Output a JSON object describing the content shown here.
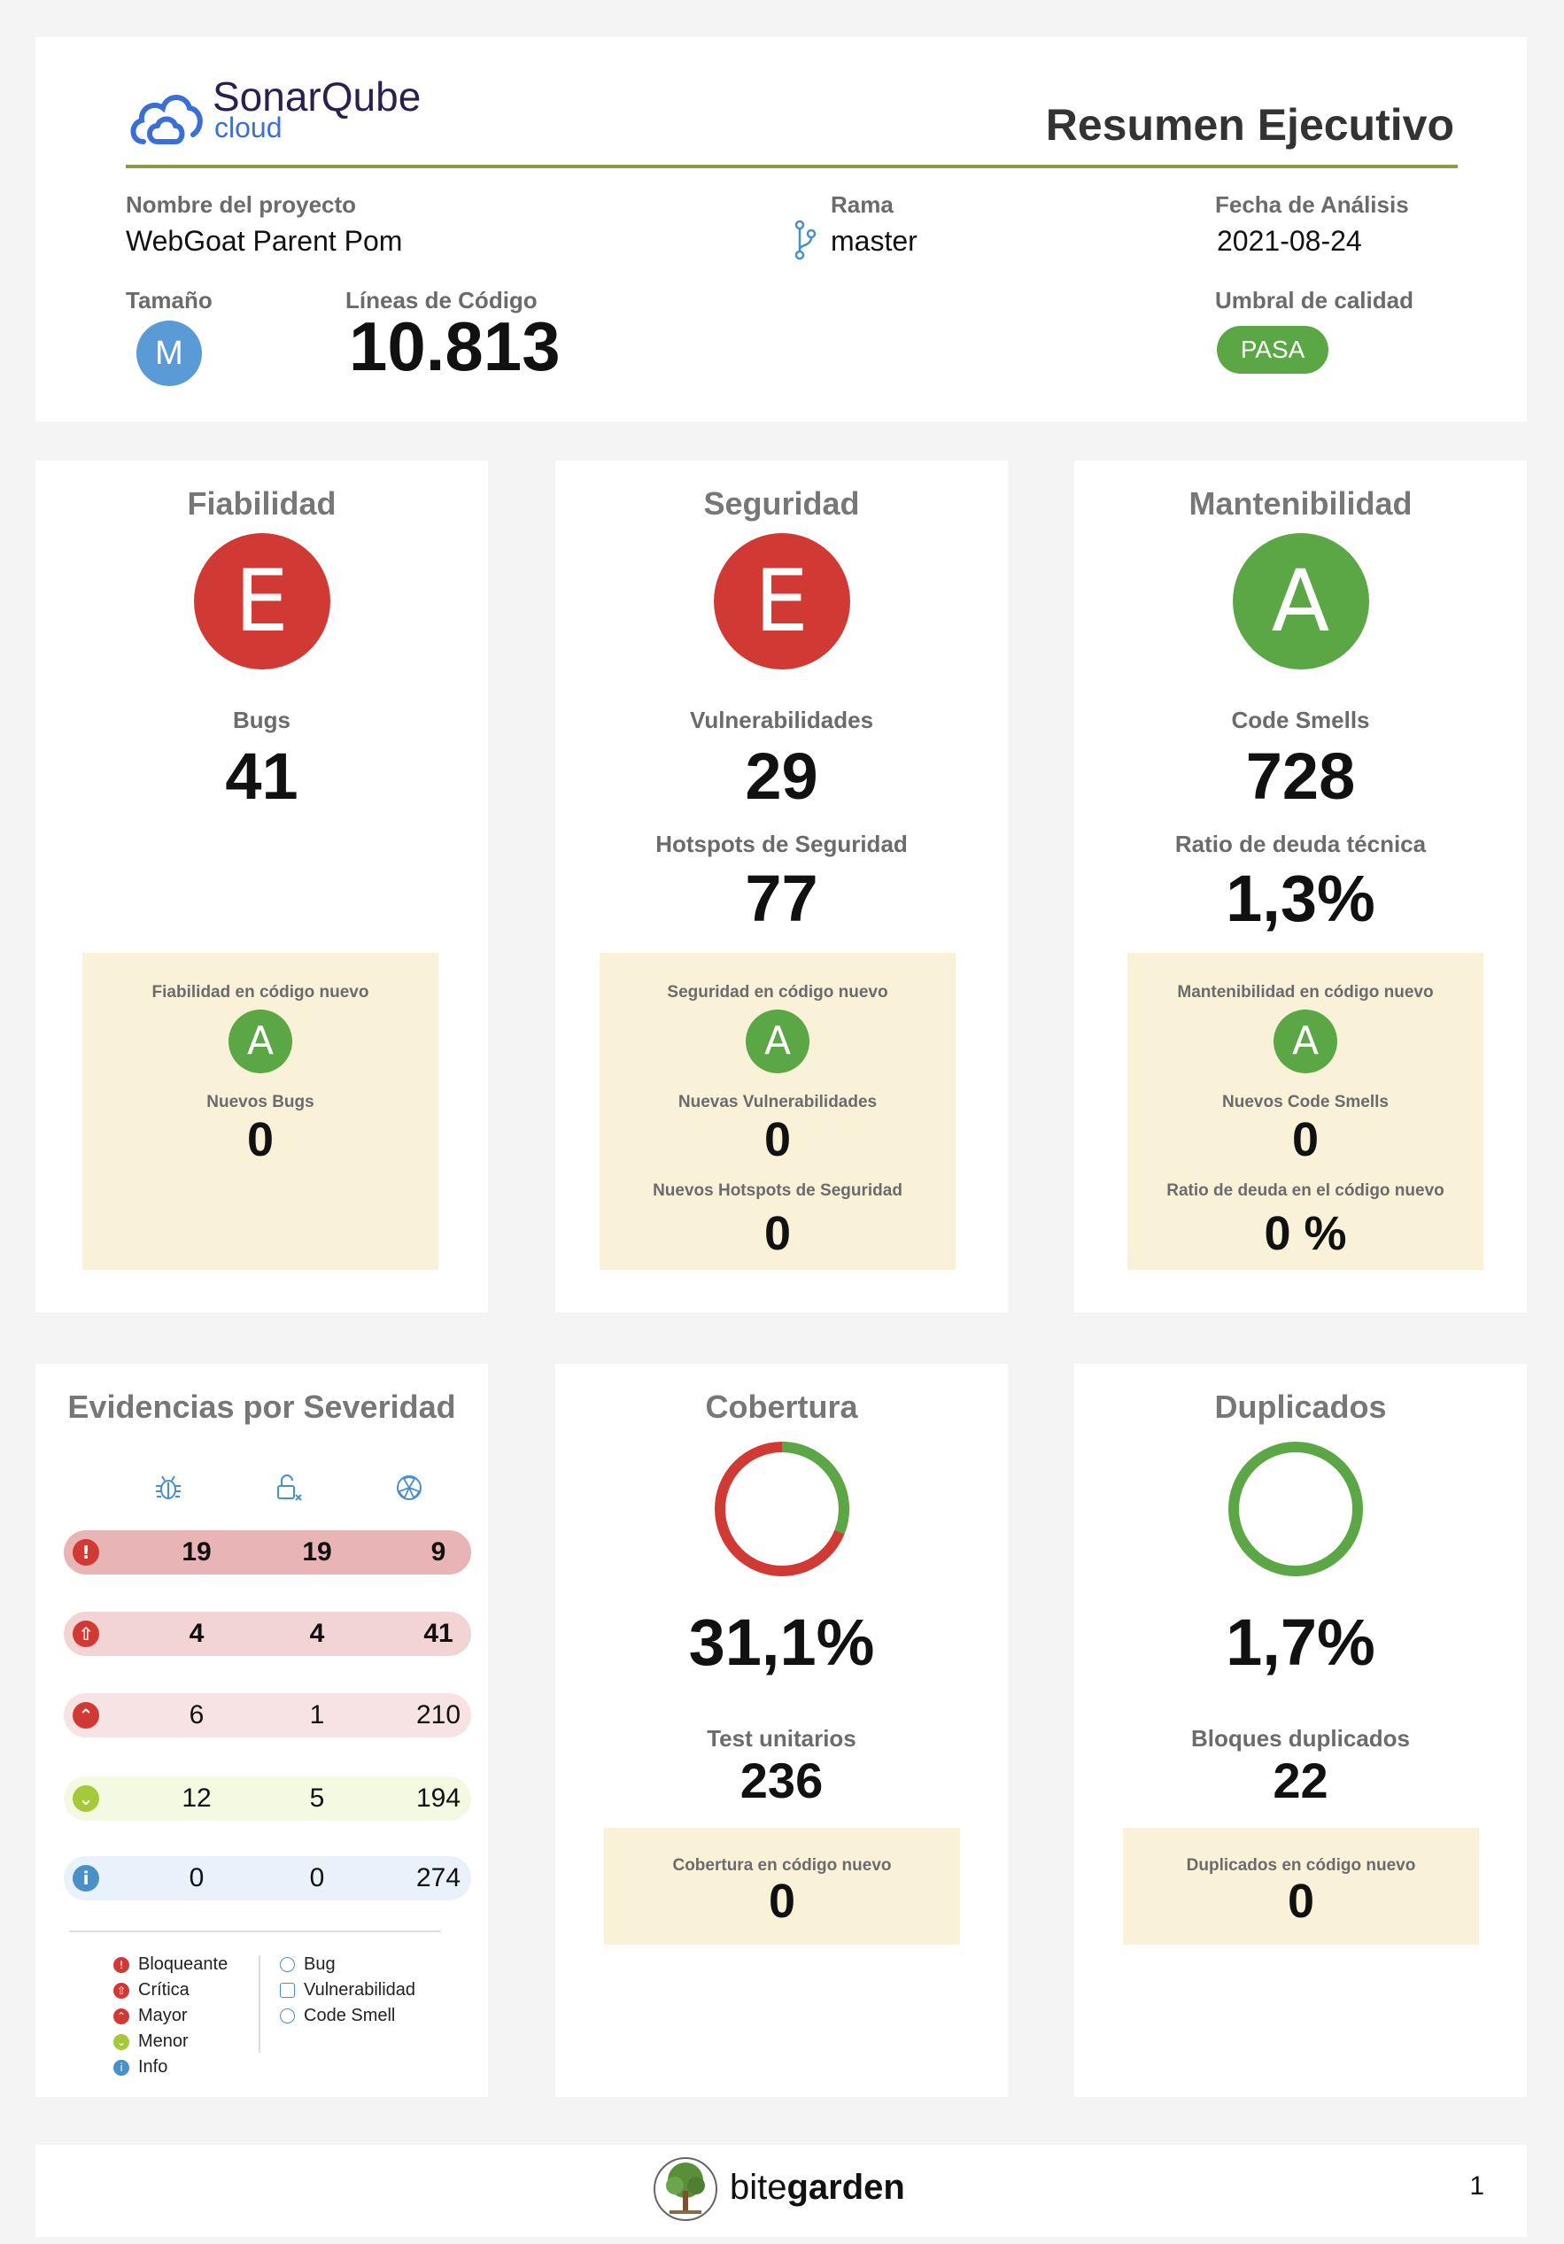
{
  "header": {
    "logo_main": "SonarQube",
    "logo_sub": "cloud",
    "title": "Resumen Ejecutivo",
    "project_label": "Nombre del proyecto",
    "project_value": "WebGoat Parent Pom",
    "branch_label": "Rama",
    "branch_value": "master",
    "date_label": "Fecha de Análisis",
    "date_value": "2021-08-24",
    "size_label": "Tamaño",
    "size_value": "M",
    "lines_label": "Líneas de Código",
    "lines_value": "10.813",
    "gate_label": "Umbral de calidad",
    "gate_value": "PASA",
    "colors": {
      "accent_line": "#8a9a45",
      "gate": "#5ba645",
      "size": "#5a9bd5"
    }
  },
  "reliability": {
    "title": "Fiabilidad",
    "grade": "E",
    "metric_label": "Bugs",
    "metric_value": "41",
    "new_title": "Fiabilidad en código nuevo",
    "new_grade": "A",
    "new_metric_label": "Nuevos Bugs",
    "new_metric_value": "0"
  },
  "security": {
    "title": "Seguridad",
    "grade": "E",
    "metric_label": "Vulnerabilidades",
    "metric_value": "29",
    "metric2_label": "Hotspots de Seguridad",
    "metric2_value": "77",
    "new_title": "Seguridad en código nuevo",
    "new_grade": "A",
    "new_metric_label": "Nuevas Vulnerabilidades",
    "new_metric_value": "0",
    "new_metric2_label": "Nuevos Hotspots de Seguridad",
    "new_metric2_value": "0"
  },
  "maintainability": {
    "title": "Mantenibilidad",
    "grade": "A",
    "metric_label": "Code Smells",
    "metric_value": "728",
    "metric2_label": "Ratio de deuda técnica",
    "metric2_value": "1,3%",
    "new_title": "Mantenibilidad en código nuevo",
    "new_grade": "A",
    "new_metric_label": "Nuevos Code Smells",
    "new_metric_value": "0",
    "new_metric2_label": "Ratio de deuda en el código nuevo",
    "new_metric2_value": "0 %"
  },
  "severity": {
    "title": "Evidencias por Severidad",
    "column_icons": [
      "bug-icon",
      "vulnerability-icon",
      "code-smell-icon"
    ],
    "rows": [
      {
        "severity": "Bloqueante",
        "icon": "blocker-icon",
        "bug": "19",
        "vulnerability": "19",
        "code_smell": "9"
      },
      {
        "severity": "Crítica",
        "icon": "critical-icon",
        "bug": "4",
        "vulnerability": "4",
        "code_smell": "41"
      },
      {
        "severity": "Mayor",
        "icon": "major-icon",
        "bug": "6",
        "vulnerability": "1",
        "code_smell": "210"
      },
      {
        "severity": "Menor",
        "icon": "minor-icon",
        "bug": "12",
        "vulnerability": "5",
        "code_smell": "194"
      },
      {
        "severity": "Info",
        "icon": "info-icon",
        "bug": "0",
        "vulnerability": "0",
        "code_smell": "274"
      }
    ],
    "legend_severities": [
      "Bloqueante",
      "Crítica",
      "Mayor",
      "Menor",
      "Info"
    ],
    "legend_types": [
      "Bug",
      "Vulnerabilidad",
      "Code Smell"
    ],
    "colors": {
      "blocker": "#d13a34",
      "critical": "#d13a34",
      "major": "#d13a34",
      "minor": "#a5c93a",
      "info": "#4a90c8"
    }
  },
  "coverage": {
    "title": "Cobertura",
    "percent": 31.1,
    "value": "31,1%",
    "tests_label": "Test unitarios",
    "tests_value": "236",
    "new_title": "Cobertura en código nuevo",
    "new_value": "0",
    "colors": {
      "covered": "#5ba645",
      "uncovered": "#d13a34"
    }
  },
  "duplications": {
    "title": "Duplicados",
    "percent": 1.7,
    "value": "1,7%",
    "blocks_label": "Bloques duplicados",
    "blocks_value": "22",
    "new_title": "Duplicados en código nuevo",
    "new_value": "0",
    "colors": {
      "ring": "#5ba645"
    }
  },
  "footer": {
    "brand_prefix": "bite",
    "brand_suffix": "garden",
    "page_number": "1"
  }
}
